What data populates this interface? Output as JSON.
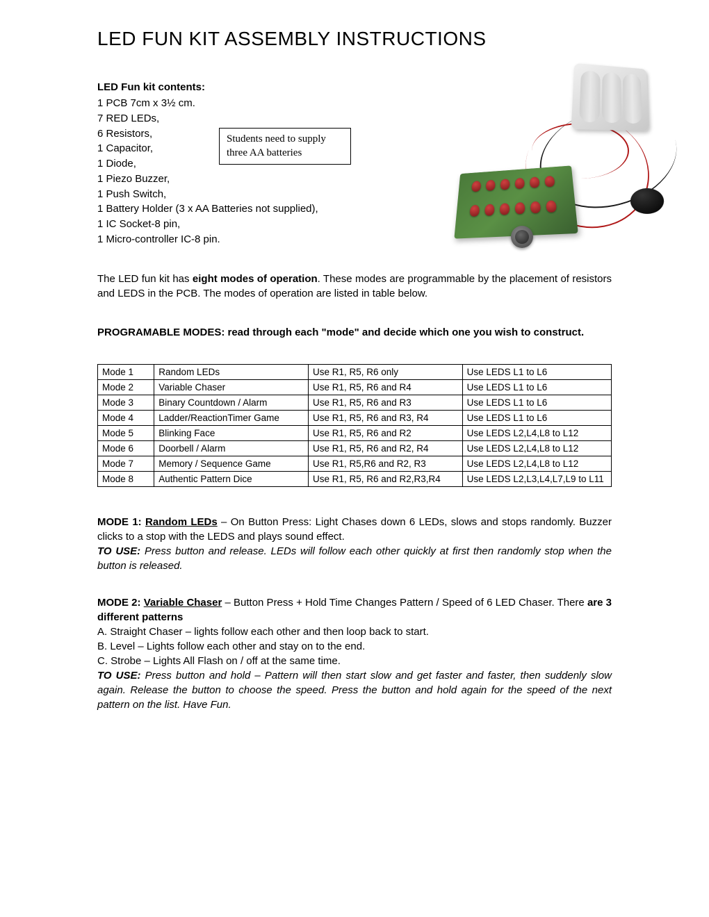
{
  "title": "LED FUN KIT ASSEMBLY INSTRUCTIONS",
  "contents_heading": "LED Fun kit contents:",
  "contents": [
    "1 PCB 7cm x 3½ cm.",
    "7 RED LEDs,",
    "6 Resistors,",
    "1 Capacitor,",
    "1 Diode,",
    "1 Piezo Buzzer,",
    "1 Push Switch,",
    "1 Battery Holder (3 x AA Batteries not supplied),",
    "1 IC Socket-8 pin,",
    "1 Micro-controller IC-8 pin."
  ],
  "note_box": "Students need to supply three AA batteries",
  "intro": {
    "pre": "The LED fun kit has ",
    "bold": "eight modes of operation",
    "post": ". These modes are programmable by the placement of  resistors and LEDS  in the PCB. The modes of operation are listed in table  below."
  },
  "modes_heading": "PROGRAMABLE MODES: read through each \"mode\" and decide which one you wish to construct.",
  "table": {
    "rows": [
      [
        "Mode 1",
        "Random LEDs",
        "Use R1, R5, R6 only",
        "Use LEDS L1 to L6"
      ],
      [
        "Mode 2",
        "Variable Chaser",
        "Use R1, R5, R6 and R4",
        "Use LEDS L1 to L6"
      ],
      [
        "Mode 3",
        "Binary Countdown / Alarm",
        "Use R1, R5, R6 and R3",
        "Use LEDS L1 to L6"
      ],
      [
        "Mode 4",
        "Ladder/ReactionTimer Game",
        "Use R1, R5, R6 and R3, R4",
        "Use LEDS L1 to L6"
      ],
      [
        "Mode 5",
        "Blinking Face",
        "Use R1, R5, R6 and R2",
        "Use LEDS L2,L4,L8 to L12"
      ],
      [
        "Mode 6",
        "Doorbell / Alarm",
        "Use R1, R5, R6 and R2, R4",
        "Use LEDS L2,L4,L8 to L12"
      ],
      [
        "Mode 7",
        "Memory / Sequence Game",
        "Use R1, R5,R6 and R2, R3",
        "Use LEDS L2,L4,L8 to L12"
      ],
      [
        "Mode 8",
        "Authentic Pattern Dice",
        "Use R1, R5, R6 and R2,R3,R4",
        "Use LEDS L2,L3,L4,L7,L9 to L11"
      ]
    ]
  },
  "mode1": {
    "label": "MODE 1:",
    "name": "Random LEDs",
    "desc": " – On Button Press: Light Chases down 6 LEDs, slows and stops randomly. Buzzer clicks to a stop with the LEDS and plays sound effect.",
    "to_use_label": "TO USE:",
    "to_use_text": " Press button and release. LEDs will follow each other quickly at first then randomly stop when the button is released."
  },
  "mode2": {
    "label": "MODE 2:",
    "name": "Variable Chaser",
    "desc_pre": " – Button Press + Hold Time Changes Pattern / Speed of 6 LED Chaser. There ",
    "desc_bold": "are 3 different patterns",
    "patterns": [
      "A.  Straight Chaser – lights follow each other and then loop back to start.",
      "B.  Level – Lights follow each other and stay on to the end.",
      "C.  Strobe – Lights All Flash on / off at the same time."
    ],
    "to_use_label": "TO USE:",
    "to_use_text": " Press button and hold – Pattern will then start slow and get faster and faster, then suddenly slow again. Release the button to choose the speed. Press the button and hold again for the speed of the next pattern on the list. Have Fun."
  }
}
